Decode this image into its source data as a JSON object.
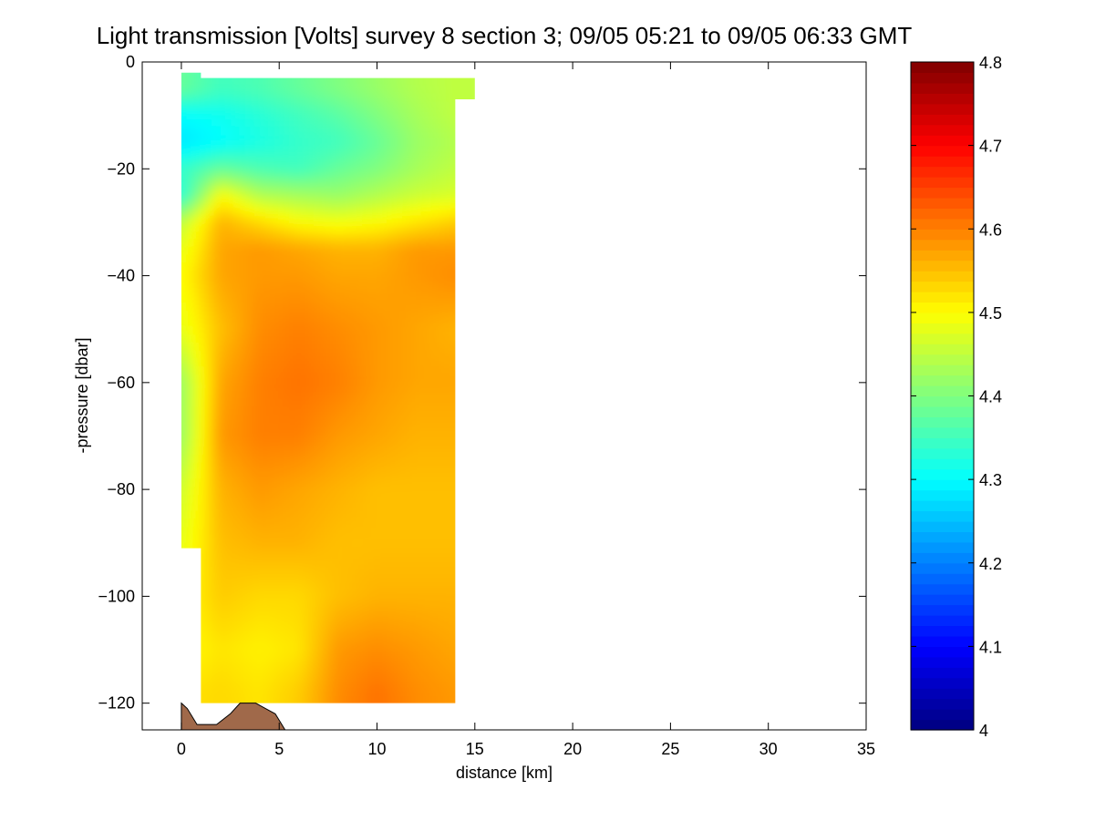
{
  "chart_data": {
    "type": "heatmap",
    "title": "Light transmission [Volts] survey 8 section 3; 09/05 05:21 to 09/05 06:33 GMT",
    "xlabel": "distance [km]",
    "ylabel": "-pressure [dbar]",
    "xlim": [
      -2,
      35
    ],
    "ylim": [
      -125,
      0
    ],
    "xticks": [
      0,
      5,
      10,
      15,
      20,
      25,
      30,
      35
    ],
    "yticks": [
      0,
      -20,
      -40,
      -60,
      -80,
      -100,
      -120
    ],
    "colorbar": {
      "label": "",
      "range": [
        4,
        4.8
      ],
      "ticks": [
        "4",
        "4.1",
        "4.2",
        "4.3",
        "4.4",
        "4.5",
        "4.6",
        "4.7",
        "4.8"
      ],
      "colormap": "jet",
      "placement": "right"
    },
    "grid": false,
    "data_extent": {
      "columns": [
        {
          "x_from": 0,
          "x_to": 1,
          "top": -2,
          "bottom": -91
        },
        {
          "x_from": 1,
          "x_to": 14,
          "top": -3,
          "bottom": -120
        },
        {
          "x_from": 14,
          "x_to": 15,
          "top": -3,
          "bottom": -7
        }
      ]
    },
    "field_profile": {
      "note_free": "",
      "depth": [
        -5,
        -10,
        -15,
        -20,
        -25,
        -30,
        -35,
        -40,
        -50,
        -60,
        -70,
        -80,
        -90,
        -100,
        -110,
        -118
      ],
      "x": [
        0,
        2,
        4,
        6,
        8,
        10,
        12,
        14
      ],
      "values": [
        [
          4.38,
          4.35,
          4.36,
          4.38,
          4.4,
          4.42,
          4.44,
          4.45
        ],
        [
          4.3,
          4.31,
          4.33,
          4.35,
          4.37,
          4.4,
          4.43,
          4.45
        ],
        [
          4.28,
          4.3,
          4.32,
          4.34,
          4.35,
          4.38,
          4.42,
          4.44
        ],
        [
          4.34,
          4.38,
          4.36,
          4.35,
          4.38,
          4.4,
          4.43,
          4.45
        ],
        [
          4.33,
          4.5,
          4.44,
          4.43,
          4.42,
          4.44,
          4.46,
          4.47
        ],
        [
          4.45,
          4.56,
          4.53,
          4.5,
          4.49,
          4.5,
          4.52,
          4.54
        ],
        [
          4.48,
          4.57,
          4.58,
          4.57,
          4.56,
          4.56,
          4.58,
          4.58
        ],
        [
          4.5,
          4.57,
          4.58,
          4.58,
          4.57,
          4.57,
          4.58,
          4.59
        ],
        [
          4.48,
          4.55,
          4.59,
          4.6,
          4.59,
          4.58,
          4.57,
          4.56
        ],
        [
          4.42,
          4.57,
          4.6,
          4.61,
          4.6,
          4.58,
          4.57,
          4.57
        ],
        [
          4.42,
          4.58,
          4.6,
          4.6,
          4.58,
          4.57,
          4.56,
          4.56
        ],
        [
          4.46,
          4.56,
          4.58,
          4.57,
          4.56,
          4.55,
          4.55,
          4.55
        ],
        [
          4.48,
          4.55,
          4.56,
          4.56,
          4.55,
          4.55,
          4.55,
          4.55
        ],
        [
          4.5,
          4.54,
          4.53,
          4.53,
          4.55,
          4.56,
          4.56,
          4.56
        ],
        [
          4.5,
          4.52,
          4.51,
          4.52,
          4.58,
          4.59,
          4.58,
          4.57
        ],
        [
          4.52,
          4.53,
          4.52,
          4.54,
          4.59,
          4.61,
          4.59,
          4.58
        ]
      ]
    },
    "bathymetry": {
      "x": [
        0.0,
        0.3,
        0.8,
        1.8,
        2.5,
        3.0,
        3.8,
        4.3,
        4.8,
        5.3
      ],
      "y": [
        -120,
        -121,
        -124,
        -124,
        -122,
        -120,
        -120,
        -121,
        -122,
        -125
      ],
      "color": "#a0694a"
    }
  }
}
